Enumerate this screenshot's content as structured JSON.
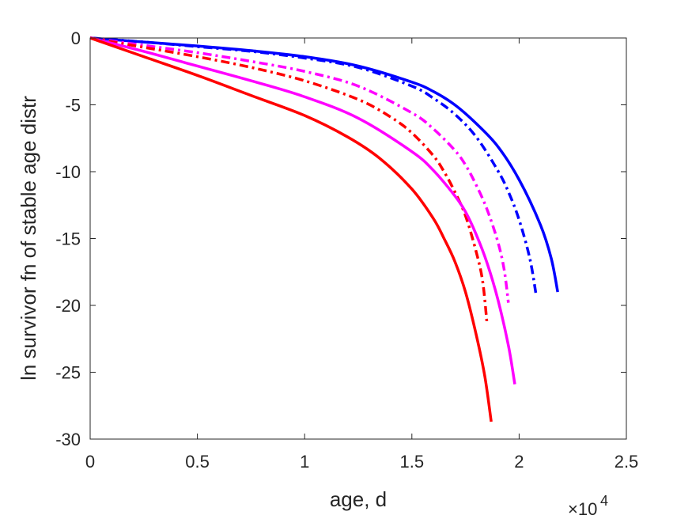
{
  "chart_data": {
    "type": "line",
    "xlabel": "age, d",
    "ylabel": "ln survivor fn of stable age distr",
    "x_multiplier_label": "×10",
    "x_multiplier_exponent": "4",
    "xlim": [
      0,
      2.5
    ],
    "ylim": [
      -30,
      0
    ],
    "x_ticks": [
      "0",
      "0.5",
      "1",
      "1.5",
      "2",
      "2.5"
    ],
    "y_ticks": [
      "0",
      "-5",
      "-10",
      "-15",
      "-20",
      "-25",
      "-30"
    ],
    "x_tick_values": [
      0,
      0.5,
      1,
      1.5,
      2,
      2.5
    ],
    "y_tick_values": [
      0,
      -5,
      -10,
      -15,
      -20,
      -25,
      -30
    ],
    "grid": false,
    "series": [
      {
        "color": "#0000ff",
        "style": "solid",
        "x": [
          0,
          0.25,
          0.5,
          0.75,
          1.0,
          1.25,
          1.5,
          1.6,
          1.7,
          1.8,
          1.9,
          2.0,
          2.1,
          2.15,
          2.18
        ],
        "y": [
          0,
          -0.3,
          -0.6,
          -0.95,
          -1.4,
          -2.1,
          -3.3,
          -4.0,
          -5.0,
          -6.4,
          -8.1,
          -10.6,
          -14.0,
          -16.5,
          -19.0
        ]
      },
      {
        "color": "#0000ff",
        "style": "dashdot",
        "x": [
          0,
          0.25,
          0.5,
          0.75,
          1.0,
          1.25,
          1.5,
          1.6,
          1.7,
          1.8,
          1.9,
          1.95,
          2.0,
          2.05,
          2.08
        ],
        "y": [
          0,
          -0.3,
          -0.65,
          -1.0,
          -1.5,
          -2.2,
          -3.6,
          -4.5,
          -5.7,
          -7.4,
          -9.9,
          -11.5,
          -13.6,
          -16.5,
          -19.3
        ]
      },
      {
        "color": "#ff00ff",
        "style": "dashdot",
        "x": [
          0,
          0.25,
          0.5,
          0.75,
          1.0,
          1.25,
          1.5,
          1.6,
          1.7,
          1.75,
          1.8,
          1.85,
          1.9,
          1.93,
          1.95
        ],
        "y": [
          0,
          -0.55,
          -1.1,
          -1.75,
          -2.5,
          -3.6,
          -5.6,
          -6.8,
          -8.4,
          -9.5,
          -11.0,
          -12.8,
          -15.2,
          -17.3,
          -19.8
        ]
      },
      {
        "color": "#ff0000",
        "style": "dashdot",
        "x": [
          0,
          0.25,
          0.5,
          0.75,
          1.0,
          1.25,
          1.4,
          1.5,
          1.6,
          1.65,
          1.7,
          1.75,
          1.8,
          1.83,
          1.85
        ],
        "y": [
          0,
          -0.7,
          -1.4,
          -2.2,
          -3.2,
          -4.6,
          -5.9,
          -7.1,
          -8.8,
          -10.0,
          -11.5,
          -13.3,
          -16.0,
          -18.2,
          -21.3
        ]
      },
      {
        "color": "#ff00ff",
        "style": "solid",
        "x": [
          0,
          0.25,
          0.5,
          0.75,
          1.0,
          1.25,
          1.5,
          1.6,
          1.7,
          1.75,
          1.8,
          1.85,
          1.9,
          1.95,
          1.98
        ],
        "y": [
          0,
          -1.0,
          -2.1,
          -3.2,
          -4.4,
          -6.0,
          -8.5,
          -9.9,
          -11.8,
          -13.0,
          -14.7,
          -16.8,
          -19.5,
          -23.0,
          -25.9
        ]
      },
      {
        "color": "#ff0000",
        "style": "solid",
        "x": [
          0,
          0.25,
          0.5,
          0.75,
          1.0,
          1.2,
          1.35,
          1.5,
          1.6,
          1.65,
          1.7,
          1.75,
          1.8,
          1.84,
          1.87
        ],
        "y": [
          0,
          -1.4,
          -2.8,
          -4.3,
          -5.8,
          -7.4,
          -9.0,
          -11.3,
          -13.5,
          -15.0,
          -16.7,
          -19.0,
          -22.2,
          -25.3,
          -28.7
        ]
      }
    ]
  }
}
